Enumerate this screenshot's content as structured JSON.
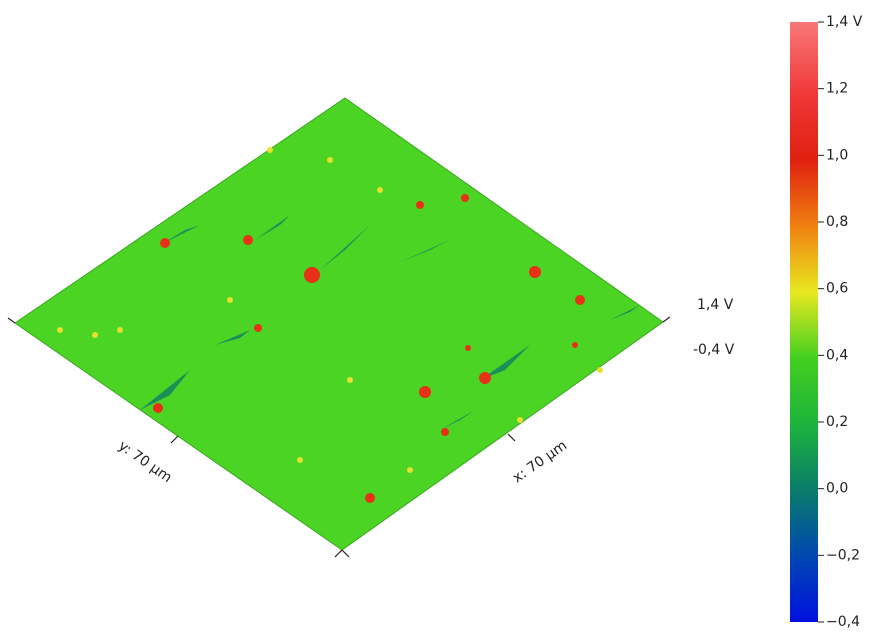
{
  "chart_data": {
    "type": "surface",
    "x_label": "x: 70 µm",
    "y_label": "y: 70 µm",
    "z_labels": [
      "1,4 V",
      "-0,4 V"
    ],
    "colorbar": {
      "lim": [
        -0.4,
        1.4
      ],
      "ticks": [
        {
          "value": 1.4,
          "label": "1,4 V"
        },
        {
          "value": 1.2,
          "label": "1,2"
        },
        {
          "value": 1.0,
          "label": "1,0"
        },
        {
          "value": 0.8,
          "label": "0,8"
        },
        {
          "value": 0.6,
          "label": "0,6"
        },
        {
          "value": 0.4,
          "label": "0,4"
        },
        {
          "value": 0.2,
          "label": "0,2"
        },
        {
          "value": 0.0,
          "label": "0,0"
        },
        {
          "value": -0.2,
          "label": "−0,2"
        },
        {
          "value": -0.4,
          "label": "−0,4"
        }
      ]
    }
  }
}
